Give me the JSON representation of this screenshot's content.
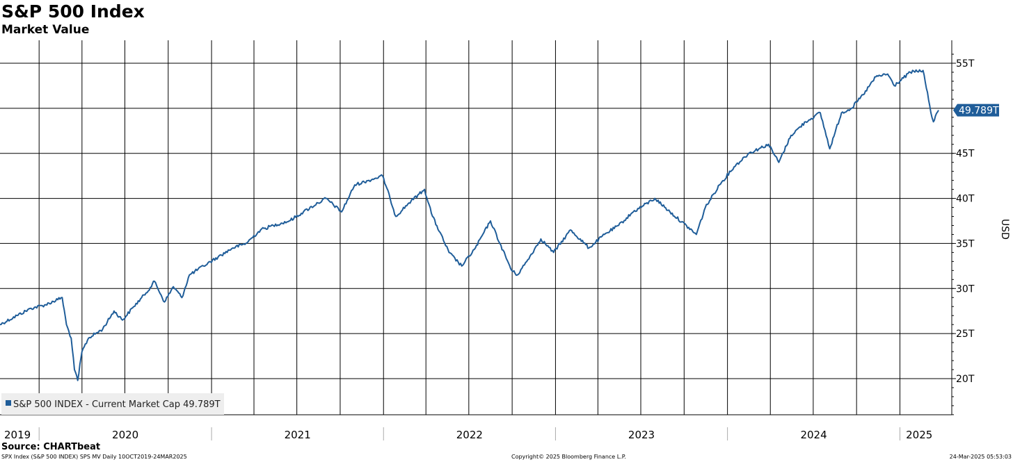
{
  "header": {
    "title": "S&P 500 Index",
    "subtitle": "Market Value"
  },
  "footer": {
    "source": "Source: CHARTbeat",
    "left_note": "SPX Index (S&P 500 INDEX) SPS MV  Daily 10OCT2019-24MAR2025",
    "copyright": "Copyright© 2025 Bloomberg Finance L.P.",
    "timestamp": "24-Mar-2025 05:53:03"
  },
  "colors": {
    "line": "#1f5d99",
    "grid": "#000000",
    "legend_bg": "#eeeeee"
  },
  "chart_data": {
    "type": "line",
    "title": "S&P 500 Index",
    "subtitle": "Market Value",
    "ylabel": "USD",
    "ylim": [
      15,
      56
    ],
    "y_ticks": [
      20,
      25,
      30,
      35,
      40,
      45,
      50,
      55
    ],
    "y_tick_labels": [
      "20T",
      "25T",
      "30T",
      "35T",
      "40T",
      "45T",
      "",
      "55T"
    ],
    "x_year_labels": [
      "2019",
      "2020",
      "2021",
      "2022",
      "2023",
      "2024",
      "2025"
    ],
    "last_value_label": "49.789T",
    "legend": {
      "label": "S&P 500 INDEX - Current Market Cap 49.789T",
      "placement": "bottom-left"
    },
    "grid": true,
    "series": [
      {
        "name": "S&P 500 INDEX - Current Market Cap",
        "unit": "T USD",
        "x": [
          "2019-10-10",
          "2019-11-15",
          "2019-12-15",
          "2020-01-15",
          "2020-02-19",
          "2020-02-28",
          "2020-03-09",
          "2020-03-16",
          "2020-03-23",
          "2020-04-01",
          "2020-04-15",
          "2020-05-15",
          "2020-06-08",
          "2020-06-26",
          "2020-07-20",
          "2020-08-15",
          "2020-09-02",
          "2020-09-23",
          "2020-10-12",
          "2020-10-30",
          "2020-11-15",
          "2020-12-15",
          "2021-01-15",
          "2021-02-15",
          "2021-03-15",
          "2021-04-15",
          "2021-05-12",
          "2021-06-15",
          "2021-07-15",
          "2021-08-15",
          "2021-09-01",
          "2021-10-04",
          "2021-11-01",
          "2021-12-01",
          "2021-12-30",
          "2022-01-15",
          "2022-01-27",
          "2022-02-24",
          "2022-03-29",
          "2022-04-15",
          "2022-05-20",
          "2022-06-16",
          "2022-07-15",
          "2022-08-16",
          "2022-09-05",
          "2022-09-30",
          "2022-10-12",
          "2022-11-01",
          "2022-12-01",
          "2022-12-28",
          "2023-02-02",
          "2023-03-13",
          "2023-04-15",
          "2023-05-15",
          "2023-06-15",
          "2023-07-31",
          "2023-09-01",
          "2023-10-27",
          "2023-11-15",
          "2023-12-15",
          "2024-01-15",
          "2024-02-15",
          "2024-03-28",
          "2024-04-19",
          "2024-05-15",
          "2024-06-15",
          "2024-07-16",
          "2024-08-05",
          "2024-08-30",
          "2024-09-20",
          "2024-10-15",
          "2024-11-11",
          "2024-12-06",
          "2024-12-20",
          "2025-01-23",
          "2025-02-19",
          "2025-03-10",
          "2025-03-13",
          "2025-03-24"
        ],
        "values": [
          26.0,
          27.0,
          27.8,
          28.2,
          29.0,
          26.0,
          24.5,
          21.0,
          19.8,
          23.0,
          24.5,
          25.5,
          27.5,
          26.5,
          28.0,
          29.5,
          30.8,
          28.5,
          30.2,
          29.0,
          31.5,
          32.5,
          33.5,
          34.5,
          35.0,
          36.5,
          37.0,
          37.5,
          38.5,
          39.5,
          40.0,
          38.5,
          41.5,
          42.0,
          42.5,
          40.0,
          38.0,
          39.5,
          41.0,
          38.0,
          34.0,
          32.5,
          34.5,
          37.5,
          35.0,
          32.0,
          31.5,
          33.0,
          35.5,
          34.0,
          36.5,
          34.5,
          36.0,
          37.0,
          38.5,
          40.0,
          38.5,
          36.0,
          39.0,
          41.5,
          43.5,
          45.0,
          46.0,
          44.0,
          47.0,
          48.5,
          49.5,
          45.5,
          49.5,
          50.0,
          51.5,
          53.5,
          53.8,
          52.5,
          54.0,
          54.2,
          49.0,
          48.5,
          49.789
        ]
      }
    ]
  }
}
